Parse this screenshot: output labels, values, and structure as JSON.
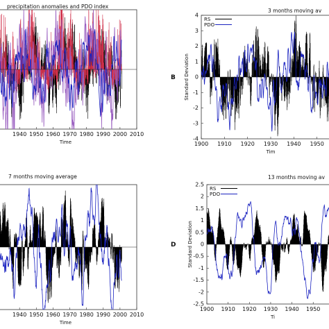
{
  "chart_data": [
    {
      "id": "A",
      "type": "bar",
      "title": "precipitation anomalies and PDO index",
      "xlabel": "Time",
      "ylabel": "",
      "panel_label": "",
      "xlim": [
        1925,
        2010
      ],
      "ylim": [
        -4,
        4
      ],
      "xticks": [
        "1940",
        "1950",
        "1960",
        "1970",
        "1980",
        "1990",
        "2000",
        "2010"
      ],
      "yticks": [],
      "grid": false,
      "legend": null,
      "x_start": 1925,
      "x_end": 2001,
      "series": [
        {
          "kind": "bars",
          "color": "#000000",
          "smooth": 0,
          "amp": 1.2,
          "seed": 11,
          "phase": 0.3
        },
        {
          "kind": "bars",
          "color": "#d0304a",
          "smooth": 0,
          "amp": 1.6,
          "seed": 23,
          "phase": 1.1,
          "positive_only": true
        },
        {
          "kind": "line",
          "color": "#9a5fc0",
          "smooth": 1,
          "amp": 1.3,
          "seed": 37,
          "phase": 2.0
        },
        {
          "kind": "line",
          "color": "#1a22c0",
          "smooth": 2,
          "amp": 0.9,
          "seed": 41,
          "phase": 2.6
        }
      ]
    },
    {
      "id": "B",
      "type": "bar",
      "title": "3 months moving av",
      "xlabel": "Tim",
      "ylabel": "Standard Deviation",
      "panel_label": "B",
      "xlim": [
        1900,
        1960
      ],
      "ylim": [
        -4,
        4
      ],
      "xticks": [
        "1900",
        "1910",
        "1920",
        "1930",
        "1940",
        "1950"
      ],
      "yticks": [
        "4",
        "3",
        "2",
        "1",
        "0",
        "-1",
        "-2",
        "-3",
        "-4"
      ],
      "grid": false,
      "legend": {
        "position": "top-left",
        "entries": [
          "RS",
          "PDO"
        ]
      },
      "x_start": 1900,
      "x_end": 1960,
      "series": [
        {
          "kind": "bars",
          "color": "#000000",
          "smooth": 1,
          "amp": 1.0,
          "seed": 5,
          "phase": 0.4
        },
        {
          "kind": "line",
          "color": "#1a22c0",
          "smooth": 2,
          "amp": 1.0,
          "seed": 9,
          "phase": 1.5
        }
      ]
    },
    {
      "id": "C",
      "type": "bar",
      "title": "7 months moving average",
      "xlabel": "Time",
      "ylabel": "",
      "panel_label": "",
      "xlim": [
        1925,
        2010
      ],
      "ylim": [
        -3,
        3
      ],
      "xticks": [
        "1940",
        "1950",
        "1960",
        "1970",
        "1980",
        "1990",
        "2000",
        "2010"
      ],
      "yticks": [],
      "grid": false,
      "legend": null,
      "x_start": 1925,
      "x_end": 2001,
      "series": [
        {
          "kind": "bars",
          "color": "#000000",
          "smooth": 2,
          "amp": 0.9,
          "seed": 61,
          "phase": 0.2
        },
        {
          "kind": "line",
          "color": "#1a22c0",
          "smooth": 3,
          "amp": 1.1,
          "seed": 67,
          "phase": 1.7
        }
      ]
    },
    {
      "id": "D",
      "type": "bar",
      "title": "13 months moving av",
      "xlabel": "Ti",
      "ylabel": "Standard Deviation",
      "panel_label": "D",
      "xlim": [
        1900,
        1962
      ],
      "ylim": [
        -2.5,
        2.5
      ],
      "xticks": [
        "1900",
        "1910",
        "1920",
        "1930",
        "1940",
        "1950"
      ],
      "yticks": [
        "2.5",
        "2",
        "1.5",
        "1",
        "0.5",
        "0",
        "-0.5",
        "-1",
        "-1.5",
        "-2",
        "-2.5"
      ],
      "grid": false,
      "legend": {
        "position": "top-left",
        "entries": [
          "RS",
          "PDO"
        ]
      },
      "x_start": 1900,
      "x_end": 1962,
      "series": [
        {
          "kind": "bars",
          "color": "#000000",
          "smooth": 3,
          "amp": 0.6,
          "seed": 83,
          "phase": 0.6
        },
        {
          "kind": "line",
          "color": "#1a22c0",
          "smooth": 4,
          "amp": 0.9,
          "seed": 89,
          "phase": 2.2
        }
      ]
    }
  ]
}
